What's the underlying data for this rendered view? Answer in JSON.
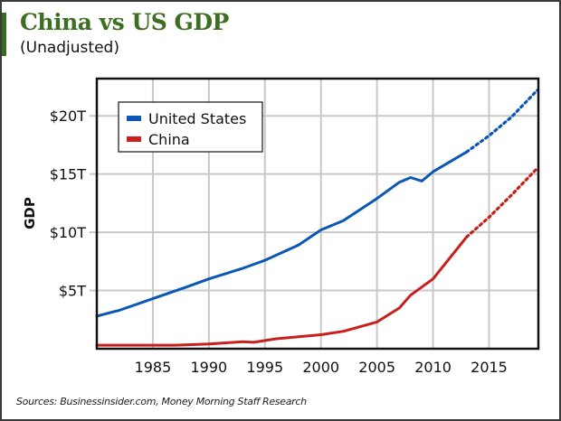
{
  "header": {
    "title": "China vs US GDP",
    "subtitle": "(Unadjusted)"
  },
  "footer": {
    "source": "Sources: Businessinsider.com, Money Morning Staff Research"
  },
  "colors": {
    "title": "#3d6e22",
    "accent_bar": "#3a6b1e",
    "us": "#0a57b5",
    "china": "#c8201c",
    "grid": "#c8c8c8",
    "frame": "#111111"
  },
  "chart_data": {
    "type": "line",
    "title": "China vs US GDP",
    "subtitle": "(Unadjusted)",
    "xlabel": "",
    "ylabel": "GDP",
    "xlim": [
      1980,
      2019.4
    ],
    "ylim": [
      0,
      23.2
    ],
    "x_ticks": [
      1985,
      1990,
      1995,
      2000,
      2005,
      2010,
      2015
    ],
    "x_tick_labels": [
      "1985",
      "1990",
      "1995",
      "2000",
      "2005",
      "2010",
      "2015"
    ],
    "y_ticks": [
      5,
      10,
      15,
      20
    ],
    "y_tick_labels": [
      "$5T",
      "$10T",
      "$15T",
      "$20T"
    ],
    "grid": true,
    "legend_position": "top-left",
    "series": [
      {
        "name": "United States",
        "color": "#0a57b5",
        "actual": {
          "x": [
            1980,
            1982,
            1985,
            1988,
            1990,
            1993,
            1995,
            1998,
            2000,
            2002,
            2005,
            2007,
            2008,
            2009,
            2010,
            2013
          ],
          "y": [
            2.8,
            3.3,
            4.3,
            5.3,
            6.0,
            6.9,
            7.6,
            8.9,
            10.2,
            11.0,
            12.9,
            14.3,
            14.7,
            14.4,
            15.2,
            16.9
          ]
        },
        "projected": {
          "x": [
            2013,
            2015,
            2017,
            2019.3
          ],
          "y": [
            16.9,
            18.3,
            19.9,
            22.2
          ]
        }
      },
      {
        "name": "China",
        "color": "#c8201c",
        "actual": {
          "x": [
            1980,
            1985,
            1987,
            1990,
            1993,
            1994,
            1996,
            2000,
            2002,
            2005,
            2007,
            2008,
            2010,
            2013
          ],
          "y": [
            0.3,
            0.3,
            0.3,
            0.4,
            0.6,
            0.55,
            0.85,
            1.2,
            1.5,
            2.3,
            3.5,
            4.6,
            6.0,
            9.6
          ]
        },
        "projected": {
          "x": [
            2013,
            2015,
            2017,
            2019.3
          ],
          "y": [
            9.6,
            11.3,
            13.2,
            15.5
          ]
        }
      }
    ]
  }
}
